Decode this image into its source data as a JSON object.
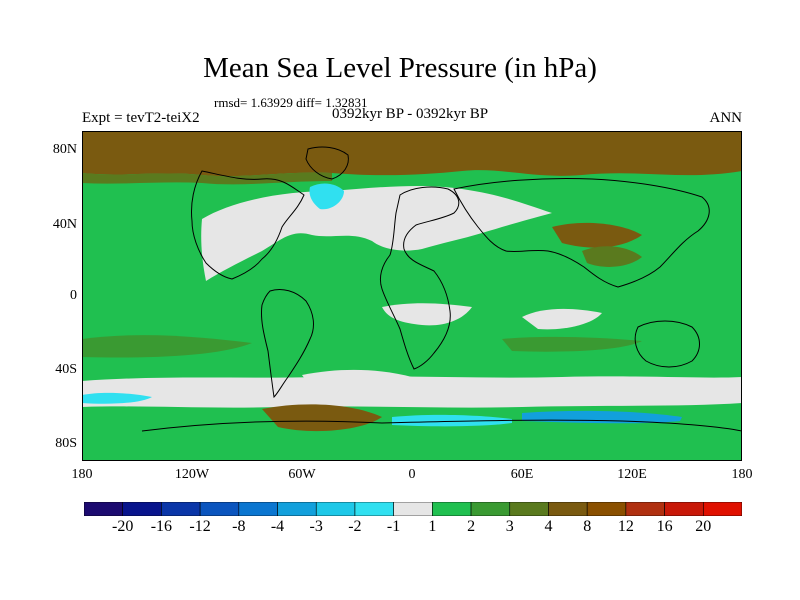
{
  "title": "Mean Sea Level Pressure (in hPa)",
  "stats": "rmsd= 1.63929 diff= 1.32831",
  "experiment": "Expt = tevT2-teiX2",
  "period": "0392kyr BP - 0392kyr BP",
  "season": "ANN",
  "lat_labels": [
    "80N",
    "40N",
    "0",
    "40S",
    "80S"
  ],
  "lon_labels": [
    "180",
    "120W",
    "60W",
    "0",
    "60E",
    "120E",
    "180"
  ],
  "colorbar": {
    "labels": [
      "-20",
      "-16",
      "-12",
      "-8",
      "-4",
      "-3",
      "-2",
      "-1",
      "1",
      "2",
      "3",
      "4",
      "8",
      "12",
      "16",
      "20"
    ],
    "colors": [
      "#1c0a70",
      "#08148c",
      "#0a36a8",
      "#0b55be",
      "#0b76d0",
      "#12a0dc",
      "#1ec8e8",
      "#30e0f0",
      "#e6e6e6",
      "#20c050",
      "#3a9a32",
      "#5a7a1e",
      "#7a5a10",
      "#8a5000",
      "#b03010",
      "#c81808",
      "#e01000"
    ]
  },
  "colors": {
    "green": "#20c050",
    "brown": "#7a5a10",
    "olive": "#5a7a1e",
    "light_gray": "#e6e6e6",
    "cyan": "#30e0f0",
    "coastline": "#000000"
  }
}
